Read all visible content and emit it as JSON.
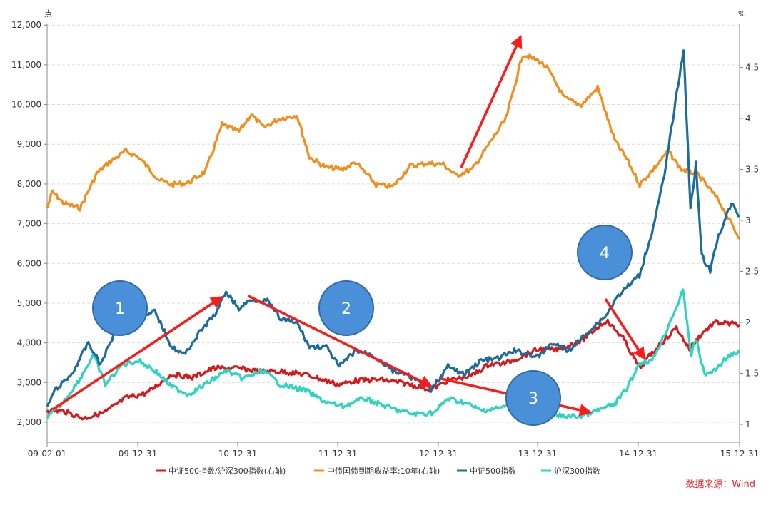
{
  "chart_data": {
    "type": "line",
    "left_unit": "点",
    "right_unit": "%",
    "x_ticks": [
      "09-02-01",
      "09-12-31",
      "10-12-31",
      "11-12-31",
      "12-12-31",
      "13-12-31",
      "14-12-31",
      "15-12-31"
    ],
    "left_ticks": [
      "2,000",
      "3,000",
      "4,000",
      "5,000",
      "6,000",
      "7,000",
      "8,000",
      "9,000",
      "10,000",
      "11,000",
      "12,000"
    ],
    "right_ticks": [
      "1",
      "1.5",
      "2",
      "2.5",
      "3",
      "3.5",
      "4",
      "4.5"
    ],
    "ylim_left": [
      2000,
      12000
    ],
    "ylim_right": [
      1,
      4.5
    ],
    "x_range": [
      "2009-02-01",
      "2015-12-31"
    ],
    "grid": "horizontal dashed",
    "legend_position": "bottom",
    "source": "数据来源：Wind",
    "markers": [
      "1",
      "2",
      "3",
      "4"
    ],
    "series": [
      {
        "name": "中证500指数/沪深300指数(右轴)",
        "color": "#d7191c",
        "axis": "right",
        "points": [
          [
            "2009-02-01",
            1.14
          ],
          [
            "2009-04-01",
            1.13
          ],
          [
            "2009-06-15",
            1.06
          ],
          [
            "2009-09-01",
            1.12
          ],
          [
            "2009-11-15",
            1.26
          ],
          [
            "2010-02-01",
            1.31
          ],
          [
            "2010-05-01",
            1.49
          ],
          [
            "2010-07-15",
            1.46
          ],
          [
            "2010-10-01",
            1.55
          ],
          [
            "2011-01-01",
            1.55
          ],
          [
            "2011-03-15",
            1.52
          ],
          [
            "2011-06-01",
            1.52
          ],
          [
            "2011-09-01",
            1.49
          ],
          [
            "2011-12-31",
            1.39
          ],
          [
            "2012-03-01",
            1.43
          ],
          [
            "2012-06-01",
            1.44
          ],
          [
            "2012-09-01",
            1.4
          ],
          [
            "2012-12-01",
            1.34
          ],
          [
            "2013-02-01",
            1.43
          ],
          [
            "2013-05-01",
            1.48
          ],
          [
            "2013-07-01",
            1.59
          ],
          [
            "2013-09-01",
            1.6
          ],
          [
            "2013-12-31",
            1.74
          ],
          [
            "2014-03-01",
            1.73
          ],
          [
            "2014-06-01",
            1.82
          ],
          [
            "2014-09-01",
            2.02
          ],
          [
            "2014-11-01",
            1.85
          ],
          [
            "2014-12-31",
            1.55
          ],
          [
            "2015-02-15",
            1.7
          ],
          [
            "2015-05-15",
            1.95
          ],
          [
            "2015-07-01",
            1.74
          ],
          [
            "2015-08-15",
            1.89
          ],
          [
            "2015-10-01",
            2.0
          ],
          [
            "2015-12-31",
            1.98
          ]
        ]
      },
      {
        "name": "中债国债到期收益率:10年(右轴)",
        "color": "#f28e1c",
        "axis": "right",
        "points": [
          [
            "2009-02-01",
            3.12
          ],
          [
            "2009-02-20",
            3.28
          ],
          [
            "2009-04-01",
            3.17
          ],
          [
            "2009-06-01",
            3.12
          ],
          [
            "2009-08-01",
            3.46
          ],
          [
            "2009-09-15",
            3.57
          ],
          [
            "2009-11-15",
            3.68
          ],
          [
            "2010-01-01",
            3.62
          ],
          [
            "2010-03-15",
            3.4
          ],
          [
            "2010-05-01",
            3.35
          ],
          [
            "2010-07-01",
            3.37
          ],
          [
            "2010-09-01",
            3.48
          ],
          [
            "2010-11-01",
            3.94
          ],
          [
            "2011-01-01",
            3.87
          ],
          [
            "2011-02-15",
            4.04
          ],
          [
            "2011-04-01",
            3.91
          ],
          [
            "2011-06-01",
            4.0
          ],
          [
            "2011-08-01",
            4.03
          ],
          [
            "2011-09-15",
            3.62
          ],
          [
            "2011-11-15",
            3.52
          ],
          [
            "2012-01-15",
            3.5
          ],
          [
            "2012-03-01",
            3.57
          ],
          [
            "2012-05-15",
            3.35
          ],
          [
            "2012-07-15",
            3.33
          ],
          [
            "2012-09-15",
            3.53
          ],
          [
            "2012-11-15",
            3.56
          ],
          [
            "2013-01-15",
            3.55
          ],
          [
            "2013-03-01",
            3.44
          ],
          [
            "2013-05-01",
            3.5
          ],
          [
            "2013-07-01",
            3.75
          ],
          [
            "2013-09-01",
            4.0
          ],
          [
            "2013-11-01",
            4.63
          ],
          [
            "2013-12-31",
            4.56
          ],
          [
            "2014-02-01",
            4.48
          ],
          [
            "2014-04-01",
            4.2
          ],
          [
            "2014-06-01",
            4.13
          ],
          [
            "2014-08-01",
            4.3
          ],
          [
            "2014-10-01",
            3.79
          ],
          [
            "2014-11-15",
            3.6
          ],
          [
            "2015-01-01",
            3.35
          ],
          [
            "2015-03-01",
            3.53
          ],
          [
            "2015-04-15",
            3.68
          ],
          [
            "2015-06-01",
            3.5
          ],
          [
            "2015-08-01",
            3.45
          ],
          [
            "2015-10-15",
            3.2
          ],
          [
            "2015-12-31",
            2.82
          ]
        ]
      },
      {
        "name": "中证500指数",
        "color": "#1b6b9c",
        "axis": "left",
        "points": [
          [
            "2009-02-01",
            2400
          ],
          [
            "2009-03-01",
            2800
          ],
          [
            "2009-05-01",
            3200
          ],
          [
            "2009-07-01",
            4000
          ],
          [
            "2009-08-15",
            3450
          ],
          [
            "2009-10-01",
            4200
          ],
          [
            "2009-12-01",
            4700
          ],
          [
            "2010-01-15",
            4600
          ],
          [
            "2010-03-01",
            4800
          ],
          [
            "2010-05-01",
            3900
          ],
          [
            "2010-06-15",
            3700
          ],
          [
            "2010-08-15",
            4300
          ],
          [
            "2010-10-15",
            4800
          ],
          [
            "2010-11-15",
            5300
          ],
          [
            "2011-01-01",
            4850
          ],
          [
            "2011-02-15",
            5100
          ],
          [
            "2011-04-15",
            5050
          ],
          [
            "2011-06-01",
            4600
          ],
          [
            "2011-08-01",
            4500
          ],
          [
            "2011-09-15",
            3900
          ],
          [
            "2011-11-15",
            3900
          ],
          [
            "2012-01-01",
            3400
          ],
          [
            "2012-03-01",
            3800
          ],
          [
            "2012-05-01",
            3700
          ],
          [
            "2012-07-15",
            3300
          ],
          [
            "2012-09-15",
            3150
          ],
          [
            "2012-12-01",
            2800
          ],
          [
            "2013-02-01",
            3400
          ],
          [
            "2013-04-01",
            3200
          ],
          [
            "2013-06-01",
            3550
          ],
          [
            "2013-08-01",
            3600
          ],
          [
            "2013-10-01",
            3800
          ],
          [
            "2013-12-31",
            3650
          ],
          [
            "2014-02-15",
            4000
          ],
          [
            "2014-04-15",
            3800
          ],
          [
            "2014-06-15",
            4200
          ],
          [
            "2014-09-01",
            4700
          ],
          [
            "2014-10-15",
            5200
          ],
          [
            "2014-12-31",
            5700
          ],
          [
            "2015-02-15",
            6800
          ],
          [
            "2015-04-01",
            8200
          ],
          [
            "2015-05-01",
            9600
          ],
          [
            "2015-06-10",
            11400
          ],
          [
            "2015-07-05",
            7400
          ],
          [
            "2015-07-25",
            8500
          ],
          [
            "2015-08-15",
            6200
          ],
          [
            "2015-09-15",
            5800
          ],
          [
            "2015-10-15",
            6700
          ],
          [
            "2015-12-01",
            7500
          ],
          [
            "2015-12-31",
            7200
          ]
        ]
      },
      {
        "name": "沪深300指数",
        "color": "#2dd4bf",
        "axis": "left",
        "points": [
          [
            "2009-02-01",
            2100
          ],
          [
            "2009-04-01",
            2500
          ],
          [
            "2009-06-01",
            3100
          ],
          [
            "2009-07-20",
            3700
          ],
          [
            "2009-09-01",
            2950
          ],
          [
            "2009-11-01",
            3450
          ],
          [
            "2010-01-01",
            3550
          ],
          [
            "2010-03-01",
            3300
          ],
          [
            "2010-05-01",
            2900
          ],
          [
            "2010-07-01",
            2700
          ],
          [
            "2010-09-01",
            2950
          ],
          [
            "2010-11-15",
            3300
          ],
          [
            "2011-01-15",
            3100
          ],
          [
            "2011-04-01",
            3300
          ],
          [
            "2011-06-01",
            2950
          ],
          [
            "2011-09-01",
            2800
          ],
          [
            "2011-11-15",
            2500
          ],
          [
            "2012-01-15",
            2400
          ],
          [
            "2012-04-01",
            2600
          ],
          [
            "2012-06-01",
            2450
          ],
          [
            "2012-08-01",
            2300
          ],
          [
            "2012-10-01",
            2200
          ],
          [
            "2012-12-15",
            2250
          ],
          [
            "2013-02-01",
            2600
          ],
          [
            "2013-04-01",
            2500
          ],
          [
            "2013-06-01",
            2300
          ],
          [
            "2013-08-01",
            2350
          ],
          [
            "2013-10-01",
            2450
          ],
          [
            "2013-12-31",
            2300
          ],
          [
            "2014-02-01",
            2200
          ],
          [
            "2014-04-01",
            2150
          ],
          [
            "2014-06-01",
            2150
          ],
          [
            "2014-08-01",
            2300
          ],
          [
            "2014-10-01",
            2450
          ],
          [
            "2014-11-20",
            2900
          ],
          [
            "2014-12-31",
            3500
          ],
          [
            "2015-02-15",
            3550
          ],
          [
            "2015-04-01",
            4200
          ],
          [
            "2015-06-08",
            5300
          ],
          [
            "2015-07-08",
            3700
          ],
          [
            "2015-07-25",
            4100
          ],
          [
            "2015-08-25",
            3200
          ],
          [
            "2015-10-01",
            3300
          ],
          [
            "2015-11-15",
            3650
          ],
          [
            "2015-12-31",
            3750
          ]
        ]
      }
    ]
  }
}
